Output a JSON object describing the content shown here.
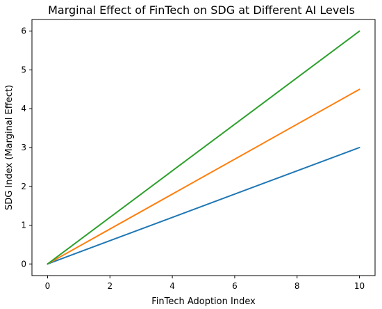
{
  "chart_data": {
    "type": "line",
    "title": "Marginal Effect of FinTech on SDG at Different AI Levels",
    "xlabel": "FinTech Adoption Index",
    "ylabel": "SDG Index (Marginal Effect)",
    "xlim": [
      -0.5,
      10.5
    ],
    "ylim": [
      -0.3,
      6.3
    ],
    "xticks": [
      0,
      2,
      4,
      6,
      8,
      10
    ],
    "yticks": [
      0,
      1,
      2,
      3,
      4,
      5,
      6
    ],
    "grid": false,
    "series": [
      {
        "x": [
          0,
          10
        ],
        "y": [
          0,
          3.0
        ],
        "color": "#1f77b4"
      },
      {
        "x": [
          0,
          10
        ],
        "y": [
          0,
          4.5
        ],
        "color": "#ff7f0e"
      },
      {
        "x": [
          0,
          10
        ],
        "y": [
          0,
          6.0
        ],
        "color": "#2ca02c"
      }
    ]
  }
}
